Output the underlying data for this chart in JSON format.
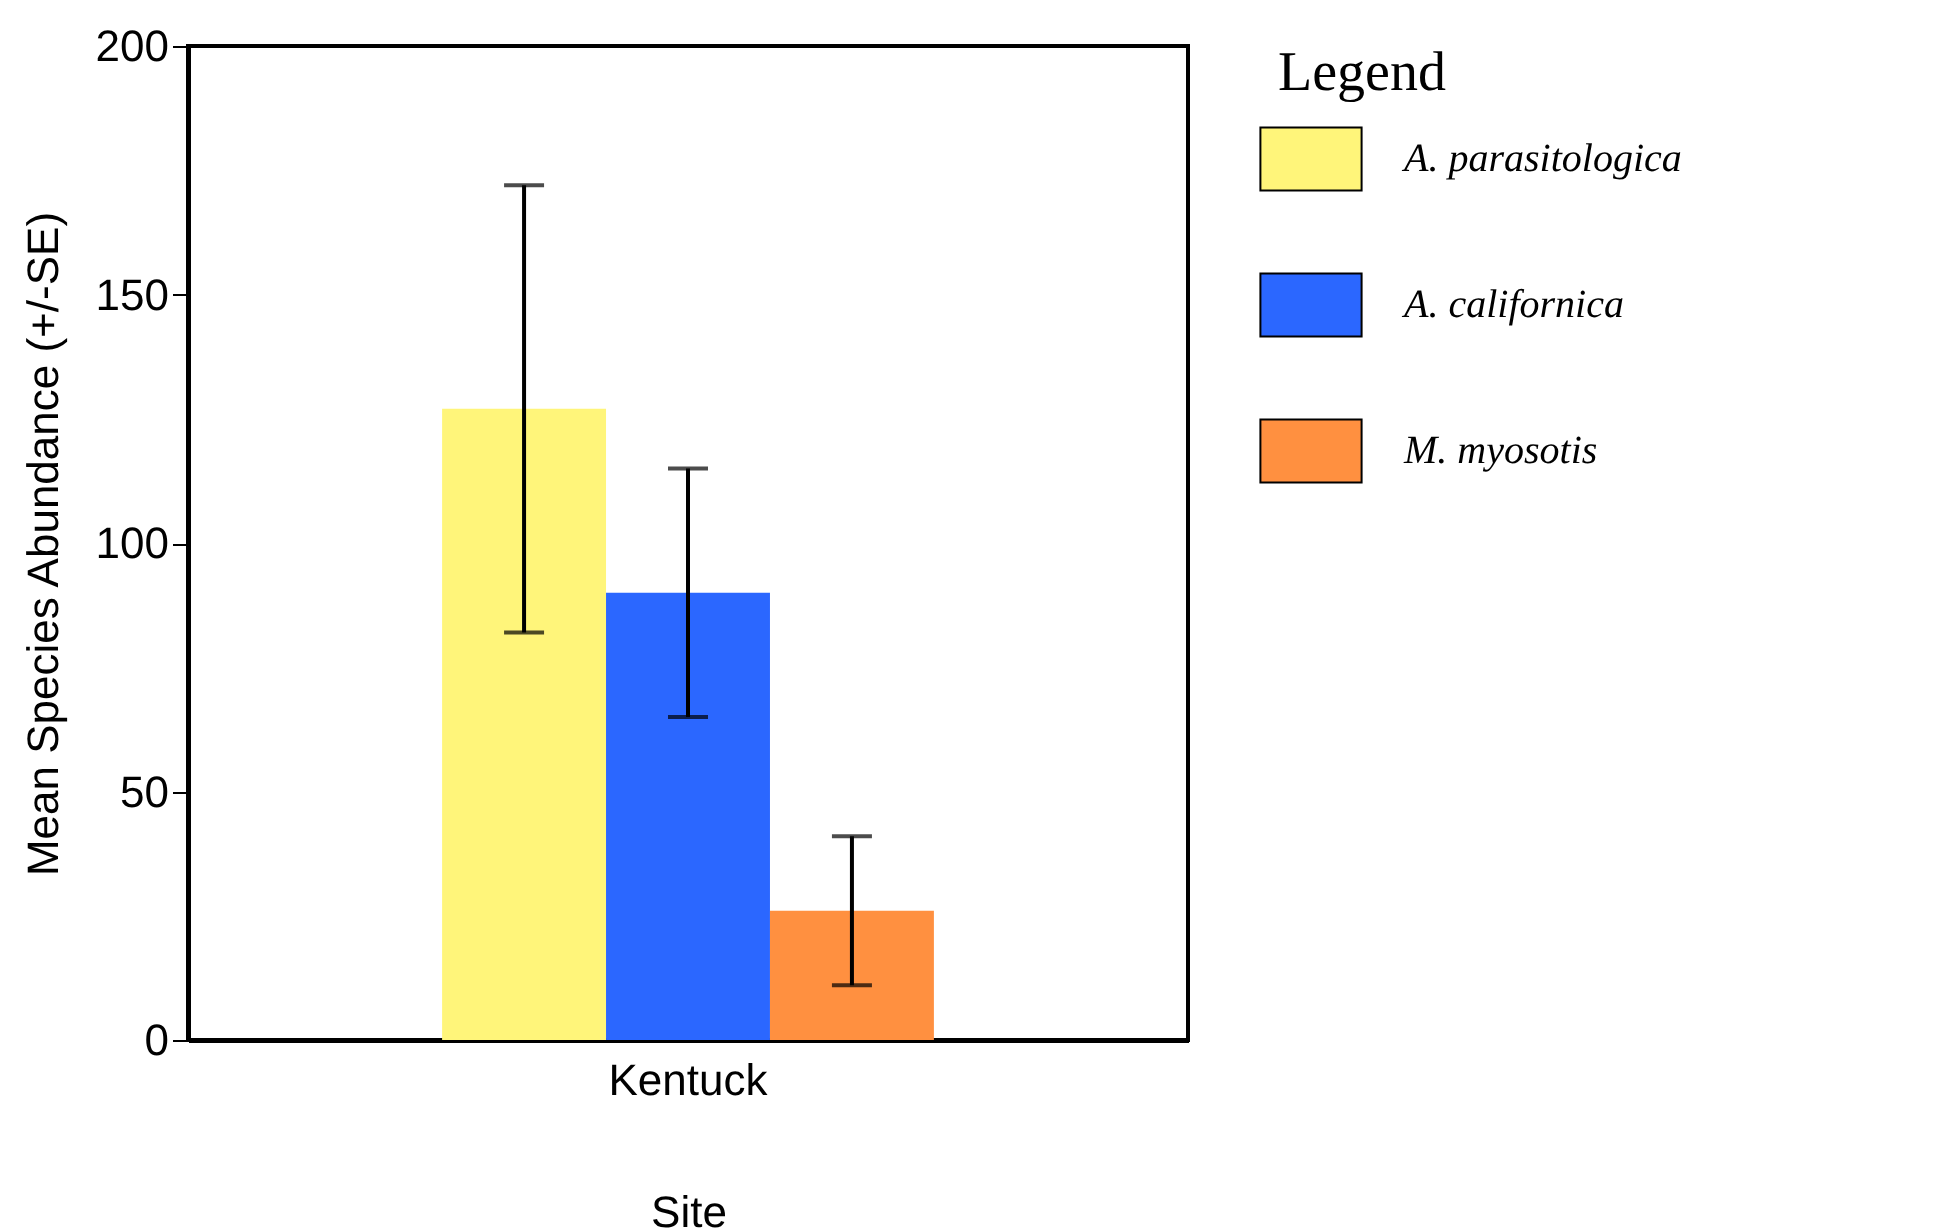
{
  "chart_data": {
    "type": "bar",
    "xlabel": "Site",
    "ylabel": "Mean Species Abundance (+/-SE)",
    "legend_title": "Legend",
    "categories": [
      "Kentuck"
    ],
    "series": [
      {
        "name": "A. parasitologica",
        "color": "#fff57a",
        "values": [
          127
        ],
        "errors": [
          45
        ]
      },
      {
        "name": "A. californica",
        "color": "#2b67ff",
        "values": [
          90
        ],
        "errors": [
          25
        ]
      },
      {
        "name": "M. myosotis",
        "color": "#ff9040",
        "values": [
          26
        ],
        "errors": [
          15
        ]
      }
    ],
    "ylim": [
      0,
      200
    ],
    "yticks": [
      0,
      50,
      100,
      150,
      200
    ],
    "grid": false,
    "legend": "right"
  }
}
